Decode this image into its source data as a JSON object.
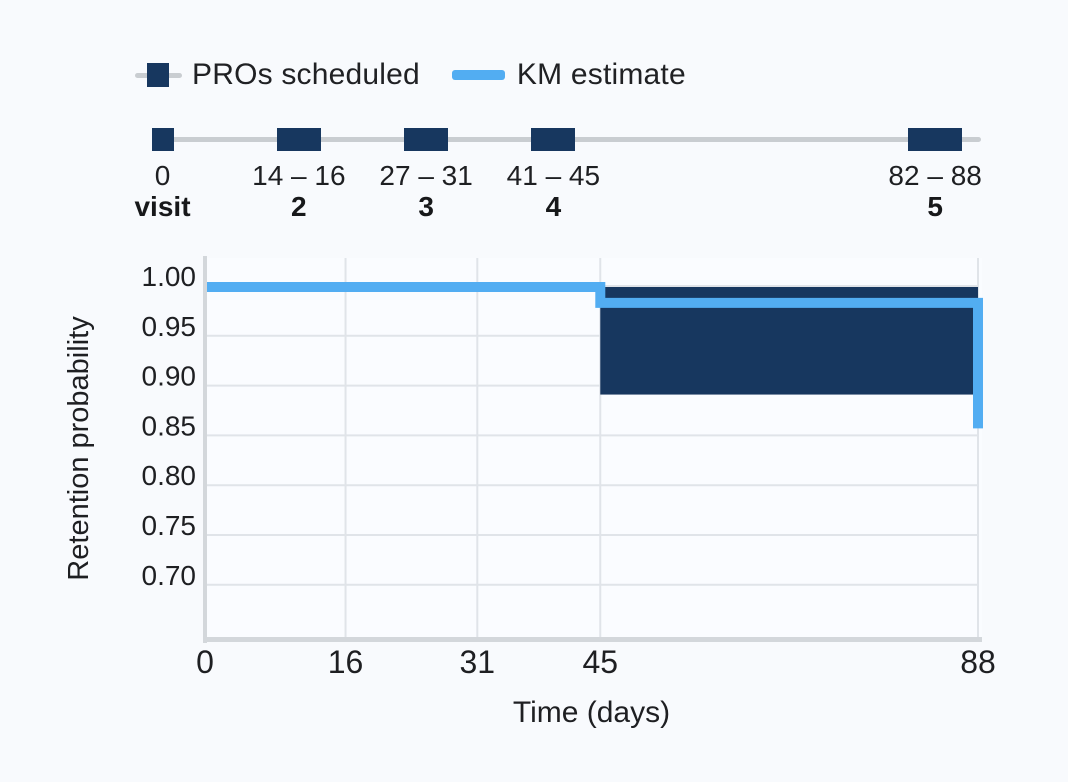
{
  "page": {
    "background": "#f8fafd"
  },
  "legend": {
    "items": [
      {
        "id": "pros-scheduled",
        "label": "PROs scheduled",
        "swatch_color": "#17375f"
      },
      {
        "id": "km-estimate",
        "label": "KM estimate",
        "swatch_color": "#52adf2"
      }
    ]
  },
  "timeline": {
    "visits": [
      {
        "window_label": "0",
        "visit_label": "visit",
        "start_day": 0,
        "end_day": 0
      },
      {
        "window_label": "14 – 16",
        "visit_label": "2",
        "start_day": 14,
        "end_day": 16
      },
      {
        "window_label": "27 – 31",
        "visit_label": "3",
        "start_day": 27,
        "end_day": 31
      },
      {
        "window_label": "41 – 45",
        "visit_label": "4",
        "start_day": 41,
        "end_day": 45
      },
      {
        "window_label": "82 – 88",
        "visit_label": "5",
        "start_day": 82,
        "end_day": 88
      }
    ],
    "bar_color": "#17375f",
    "line_color": "#c9cdd1"
  },
  "chart_data": {
    "type": "line",
    "title": "",
    "xlabel": "Time (days)",
    "ylabel": "Retention probability",
    "xlim": [
      0,
      88
    ],
    "ylim": [
      0.655,
      1.005
    ],
    "grid": true,
    "x_ticks": [
      {
        "value": 0,
        "label": "0"
      },
      {
        "value": 16,
        "label": "16"
      },
      {
        "value": 31,
        "label": "31"
      },
      {
        "value": 45,
        "label": "45"
      },
      {
        "value": 88,
        "label": "88"
      }
    ],
    "y_ticks": [
      {
        "value": 1.0,
        "label": "1.00"
      },
      {
        "value": 0.95,
        "label": "0.95"
      },
      {
        "value": 0.9,
        "label": "0.90"
      },
      {
        "value": 0.85,
        "label": "0.85"
      },
      {
        "value": 0.8,
        "label": "0.80"
      },
      {
        "value": 0.75,
        "label": "0.75"
      },
      {
        "value": 0.7,
        "label": "0.70"
      }
    ],
    "series": [
      {
        "name": "KM estimate",
        "render": "step-line",
        "color": "#52adf2",
        "points": [
          [
            0,
            0.999
          ],
          [
            45,
            0.999
          ],
          [
            45,
            0.983
          ],
          [
            88,
            0.983
          ],
          [
            88,
            0.857
          ]
        ]
      },
      {
        "name": "PROs scheduled",
        "render": "band",
        "color": "#17375f",
        "x_range": [
          45,
          88
        ],
        "upper": 0.999,
        "lower": 0.891
      }
    ]
  },
  "colors": {
    "navy": "#17375f",
    "blue": "#52adf2",
    "gray_line": "#c9cdd1",
    "axis": "#d3d7db",
    "grid": "#e0e4e9",
    "plot_background": "#fafcff",
    "text": "#1e1f22"
  }
}
